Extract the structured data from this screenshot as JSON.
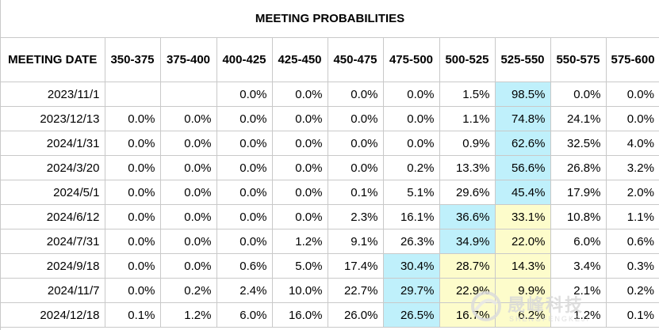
{
  "title": "MEETING PROBABILITIES",
  "headers": [
    "MEETING DATE",
    "350-375",
    "375-400",
    "400-425",
    "425-450",
    "450-475",
    "475-500",
    "500-525",
    "525-550",
    "550-575",
    "575-600"
  ],
  "rows": [
    {
      "date": "2023/11/1",
      "values": [
        "",
        "",
        "0.0%",
        "0.0%",
        "0.0%",
        "0.0%",
        "1.5%",
        "98.5%",
        "0.0%",
        "0.0%"
      ],
      "highlight": {
        "7": "cyan"
      }
    },
    {
      "date": "2023/12/13",
      "values": [
        "0.0%",
        "0.0%",
        "0.0%",
        "0.0%",
        "0.0%",
        "0.0%",
        "1.1%",
        "74.8%",
        "24.1%",
        "0.0%"
      ],
      "highlight": {
        "7": "cyan"
      }
    },
    {
      "date": "2024/1/31",
      "values": [
        "0.0%",
        "0.0%",
        "0.0%",
        "0.0%",
        "0.0%",
        "0.0%",
        "0.9%",
        "62.6%",
        "32.5%",
        "4.0%"
      ],
      "highlight": {
        "7": "cyan"
      }
    },
    {
      "date": "2024/3/20",
      "values": [
        "0.0%",
        "0.0%",
        "0.0%",
        "0.0%",
        "0.0%",
        "0.2%",
        "13.3%",
        "56.6%",
        "26.8%",
        "3.2%"
      ],
      "highlight": {
        "7": "cyan"
      }
    },
    {
      "date": "2024/5/1",
      "values": [
        "0.0%",
        "0.0%",
        "0.0%",
        "0.0%",
        "0.1%",
        "5.1%",
        "29.6%",
        "45.4%",
        "17.9%",
        "2.0%"
      ],
      "highlight": {
        "7": "cyan"
      }
    },
    {
      "date": "2024/6/12",
      "values": [
        "0.0%",
        "0.0%",
        "0.0%",
        "0.0%",
        "2.3%",
        "16.1%",
        "36.6%",
        "33.1%",
        "10.8%",
        "1.1%"
      ],
      "highlight": {
        "6": "cyan",
        "7": "yellow"
      }
    },
    {
      "date": "2024/7/31",
      "values": [
        "0.0%",
        "0.0%",
        "0.0%",
        "1.2%",
        "9.1%",
        "26.3%",
        "34.9%",
        "22.0%",
        "6.0%",
        "0.6%"
      ],
      "highlight": {
        "6": "cyan",
        "7": "yellow"
      }
    },
    {
      "date": "2024/9/18",
      "values": [
        "0.0%",
        "0.0%",
        "0.6%",
        "5.0%",
        "17.4%",
        "30.4%",
        "28.7%",
        "14.3%",
        "3.4%",
        "0.3%"
      ],
      "highlight": {
        "5": "cyan",
        "6": "yellow",
        "7": "yellow"
      }
    },
    {
      "date": "2024/11/7",
      "values": [
        "0.0%",
        "0.2%",
        "2.4%",
        "10.0%",
        "22.7%",
        "29.7%",
        "22.9%",
        "9.9%",
        "2.1%",
        "0.2%"
      ],
      "highlight": {
        "5": "cyan",
        "6": "yellow",
        "7": "yellow"
      }
    },
    {
      "date": "2024/12/18",
      "values": [
        "0.1%",
        "1.2%",
        "6.0%",
        "16.0%",
        "26.0%",
        "26.5%",
        "16.7%",
        "6.2%",
        "1.2%",
        "0.1%"
      ],
      "highlight": {
        "5": "cyan",
        "6": "yellow",
        "7": "yellow"
      }
    }
  ],
  "colors": {
    "highlight_cyan": "#bff0fb",
    "highlight_yellow": "#fdfccb",
    "border": "#c9c9c9"
  },
  "watermark": {
    "text": "晟峰科技",
    "subtext": "SHENGFENGKEJI",
    "icon": "swirl-logo-icon"
  }
}
